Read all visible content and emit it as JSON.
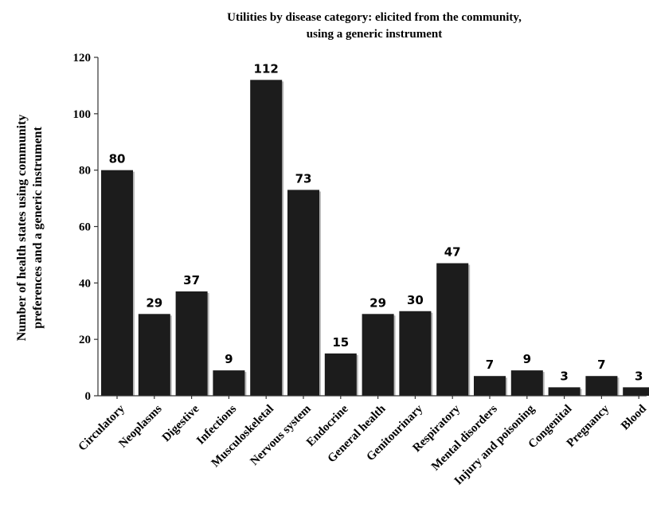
{
  "chart_data": {
    "type": "bar",
    "title_line1": "Utilities by disease category: elicited from the community,",
    "title_line2": "using a generic instrument",
    "ylabel_line1": "Number of health states using community",
    "ylabel_line2": "preferences and a generic instrument",
    "xlabel": "",
    "ylim": [
      0,
      120
    ],
    "yticks": [
      "0",
      "20",
      "40",
      "60",
      "80",
      "100",
      "120"
    ],
    "categories": [
      "Circulatory",
      "Neoplasms",
      "Digestive",
      "Infections",
      "Musculoskeletal",
      "Nervous system",
      "Endocrine",
      "General health",
      "Genitourinary",
      "Respiratory",
      "Mental disorders",
      "Injury and poisoning",
      "Congenital",
      "Pregnancy",
      "Blood"
    ],
    "values": [
      80,
      29,
      37,
      9,
      112,
      73,
      15,
      29,
      30,
      47,
      7,
      9,
      3,
      7,
      3
    ],
    "value_labels": [
      "80",
      "29",
      "37",
      "9",
      "112",
      "73",
      "15",
      "29",
      "30",
      "47",
      "7",
      "9",
      "3",
      "7",
      "3"
    ],
    "grid": false,
    "legend": "none",
    "bar_color": "#1c1c1c"
  }
}
